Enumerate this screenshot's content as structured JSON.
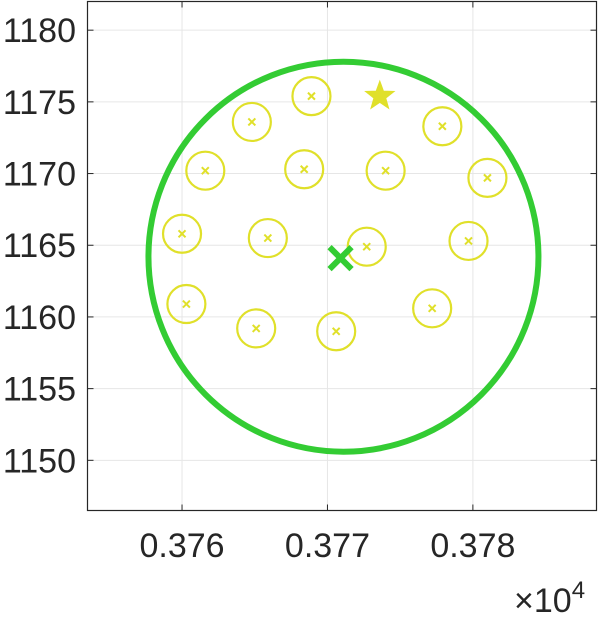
{
  "chart_data": {
    "type": "scatter",
    "title": "",
    "xlabel": "",
    "ylabel": "",
    "x_exponent_label": "×10",
    "x_exponent_power": "4",
    "xlim": [
      0.37535,
      0.37885
    ],
    "ylim": [
      1146.5,
      1182
    ],
    "x_ticks": [
      0.376,
      0.377,
      0.378
    ],
    "x_tick_labels": [
      "0.376",
      "0.377",
      "0.378"
    ],
    "y_ticks": [
      1150,
      1155,
      1160,
      1165,
      1170,
      1175,
      1180
    ],
    "y_tick_labels": [
      "1150",
      "1155",
      "1160",
      "1165",
      "1170",
      "1175",
      "1180"
    ],
    "grid": true,
    "colors": {
      "points": "#e0e02a",
      "center": "#33cc33",
      "boundary": "#33cc33",
      "grid": "#e6e6e6",
      "axis": "#262626"
    },
    "points": [
      {
        "x": 0.37689,
        "y": 1175.4
      },
      {
        "x": 0.37648,
        "y": 1173.6
      },
      {
        "x": 0.37616,
        "y": 1170.2
      },
      {
        "x": 0.37684,
        "y": 1170.3
      },
      {
        "x": 0.3774,
        "y": 1170.2
      },
      {
        "x": 0.37779,
        "y": 1173.3
      },
      {
        "x": 0.3781,
        "y": 1169.7
      },
      {
        "x": 0.376,
        "y": 1165.8
      },
      {
        "x": 0.37659,
        "y": 1165.5
      },
      {
        "x": 0.37727,
        "y": 1164.9
      },
      {
        "x": 0.37797,
        "y": 1165.3
      },
      {
        "x": 0.37603,
        "y": 1160.9
      },
      {
        "x": 0.37651,
        "y": 1159.2
      },
      {
        "x": 0.37706,
        "y": 1159.0
      },
      {
        "x": 0.37772,
        "y": 1160.6
      }
    ],
    "highlight_point": {
      "x": 0.37736,
      "y": 1175.4,
      "marker": "star"
    },
    "center_point": {
      "x": 0.37709,
      "y": 1164.1,
      "marker": "x"
    },
    "boundary_circle": {
      "cx": 0.37711,
      "cy": 1164.2,
      "radius_y": 13.6
    }
  }
}
